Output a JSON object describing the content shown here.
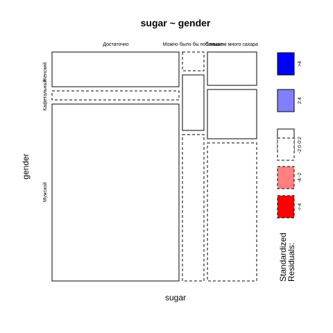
{
  "chart_data": {
    "type": "mosaic",
    "title": "sugar ~ gender",
    "xlabel": "sugar",
    "ylabel": "gender",
    "x_categories": [
      "Достаточно",
      "Можно было бы побольше",
      "Слишком много сахара"
    ],
    "y_categories": [
      "Женский",
      "Кафетальный",
      "Мужской"
    ],
    "cells": [
      {
        "x": "Достаточно",
        "y": "Женский",
        "residual_class": "0:2"
      },
      {
        "x": "Достаточно",
        "y": "Кафетальный",
        "residual_class": "-2:0"
      },
      {
        "x": "Достаточно",
        "y": "Мужской",
        "residual_class": "0:2"
      },
      {
        "x": "Можно было бы побольше",
        "y": "Женский",
        "residual_class": "-2:0"
      },
      {
        "x": "Можно было бы побольше",
        "y": "Кафетальный",
        "residual_class": "0:2"
      },
      {
        "x": "Можно было бы побольше",
        "y": "Мужской",
        "residual_class": "-2:0"
      },
      {
        "x": "Слишком много сахара",
        "y": "Женский",
        "residual_class": "0:2"
      },
      {
        "x": "Слишком много сахара",
        "y": "Кафетальный",
        "residual_class": "0:2"
      },
      {
        "x": "Слишком много сахара",
        "y": "Мужской",
        "residual_class": "-2:0"
      }
    ],
    "legend": {
      "title_lines": [
        "Standardized",
        "Residuals:"
      ],
      "placement": "right",
      "entries": [
        {
          "label": ">4",
          "fill": "#0000ff",
          "dashed": false
        },
        {
          "label": "2:4",
          "fill": "#8080ff",
          "dashed": false
        },
        {
          "label": "0:2",
          "fill": "#ffffff",
          "dashed": false
        },
        {
          "label": "-2:0",
          "fill": "#ffffff",
          "dashed": true
        },
        {
          "label": "-4:-2",
          "fill": "#ff8080",
          "dashed": true
        },
        {
          "label": "<-4",
          "fill": "#ff0000",
          "dashed": true
        }
      ]
    }
  }
}
